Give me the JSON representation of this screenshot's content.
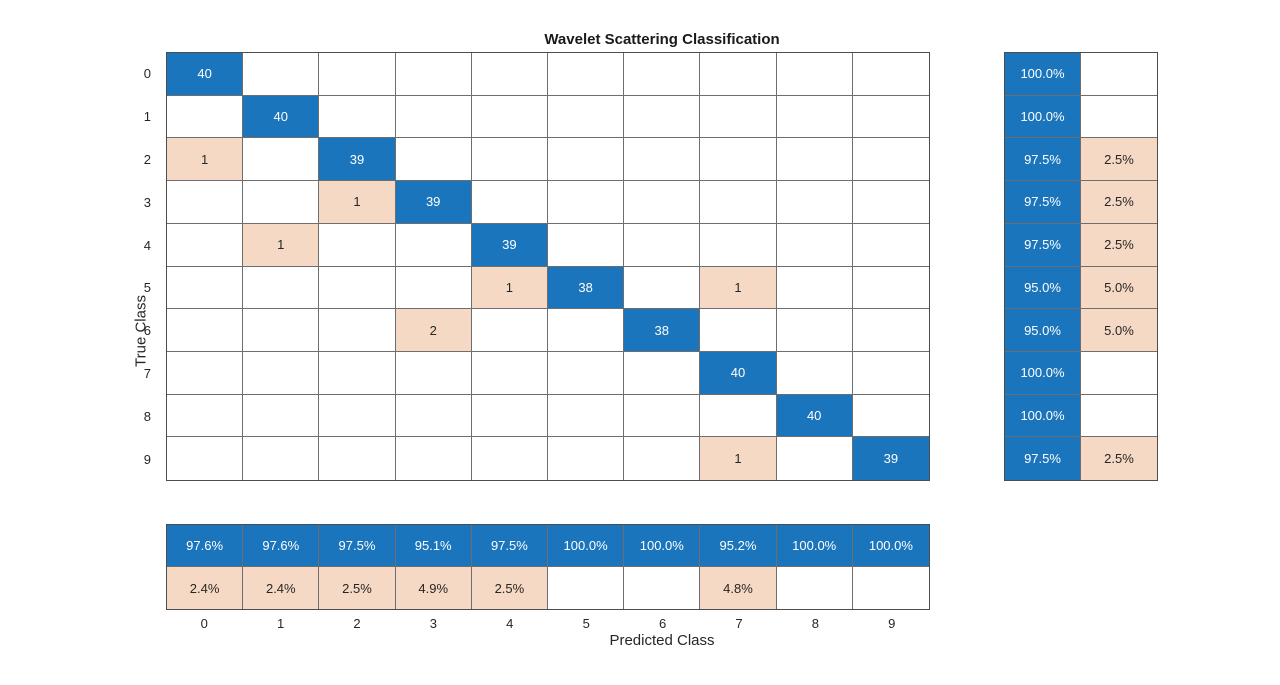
{
  "title": "Wavelet Scattering Classification",
  "axes": {
    "xlabel": "Predicted Class",
    "ylabel": "True Class"
  },
  "chart_data": {
    "type": "heatmap",
    "subtype": "confusion-matrix",
    "title": "Wavelet Scattering Classification",
    "xlabel": "Predicted Class",
    "ylabel": "True Class",
    "classes": [
      "0",
      "1",
      "2",
      "3",
      "4",
      "5",
      "6",
      "7",
      "8",
      "9"
    ],
    "matrix": [
      [
        40,
        0,
        0,
        0,
        0,
        0,
        0,
        0,
        0,
        0
      ],
      [
        0,
        40,
        0,
        0,
        0,
        0,
        0,
        0,
        0,
        0
      ],
      [
        1,
        0,
        39,
        0,
        0,
        0,
        0,
        0,
        0,
        0
      ],
      [
        0,
        0,
        1,
        39,
        0,
        0,
        0,
        0,
        0,
        0
      ],
      [
        0,
        1,
        0,
        0,
        39,
        0,
        0,
        0,
        0,
        0
      ],
      [
        0,
        0,
        0,
        0,
        1,
        38,
        0,
        1,
        0,
        0
      ],
      [
        0,
        0,
        0,
        2,
        0,
        0,
        38,
        0,
        0,
        0
      ],
      [
        0,
        0,
        0,
        0,
        0,
        0,
        0,
        40,
        0,
        0
      ],
      [
        0,
        0,
        0,
        0,
        0,
        0,
        0,
        0,
        40,
        0
      ],
      [
        0,
        0,
        0,
        0,
        0,
        0,
        0,
        1,
        0,
        39
      ]
    ],
    "row_summary": [
      [
        "100.0%",
        ""
      ],
      [
        "100.0%",
        ""
      ],
      [
        "97.5%",
        "2.5%"
      ],
      [
        "97.5%",
        "2.5%"
      ],
      [
        "97.5%",
        "2.5%"
      ],
      [
        "95.0%",
        "5.0%"
      ],
      [
        "95.0%",
        "5.0%"
      ],
      [
        "100.0%",
        ""
      ],
      [
        "100.0%",
        ""
      ],
      [
        "97.5%",
        "2.5%"
      ]
    ],
    "column_summary": [
      [
        "97.6%",
        "2.4%"
      ],
      [
        "97.6%",
        "2.4%"
      ],
      [
        "97.5%",
        "2.5%"
      ],
      [
        "95.1%",
        "4.9%"
      ],
      [
        "97.5%",
        "2.5%"
      ],
      [
        "100.0%",
        ""
      ],
      [
        "100.0%",
        ""
      ],
      [
        "95.2%",
        "4.8%"
      ],
      [
        "100.0%",
        ""
      ],
      [
        "100.0%",
        ""
      ]
    ],
    "colors": {
      "correct": "#1b75bc",
      "incorrect": "#f6d9c4",
      "empty": "#ffffff",
      "text_on_correct": "#ffffff",
      "text_dark": "#262626"
    }
  }
}
